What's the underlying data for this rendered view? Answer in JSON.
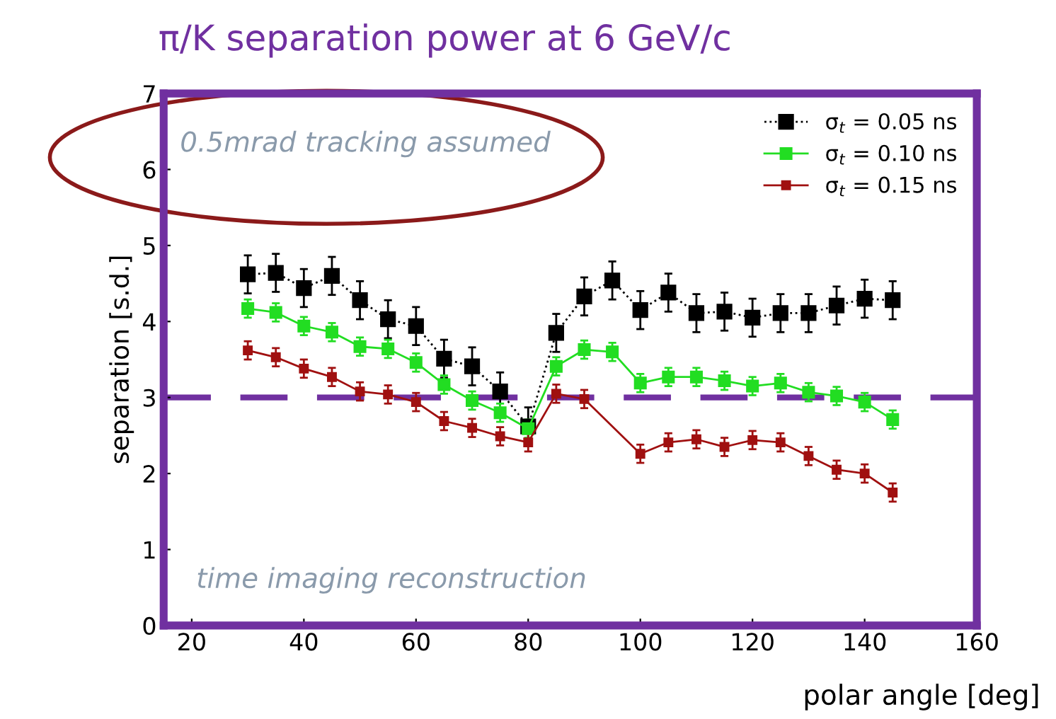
{
  "chart_data": {
    "type": "line",
    "title": "π/K separation power at 6 GeV/c",
    "xlabel": "polar angle [deg]",
    "ylabel": "separation [s.d.]",
    "xlim": [
      15,
      160
    ],
    "xticks": [
      20,
      40,
      60,
      80,
      100,
      120,
      140,
      160
    ],
    "ylim": [
      0,
      7
    ],
    "yticks": [
      0,
      1,
      2,
      3,
      4,
      5,
      6,
      7
    ],
    "grid": false,
    "legend": "top right",
    "marker": "square",
    "ref_lines": [
      {
        "axis": "y",
        "value": 3,
        "label": null,
        "color": "#7030a0",
        "line_style": "dashed"
      }
    ],
    "annotations": [
      "0.5mrad tracking assumed",
      "time imaging reconstruction"
    ],
    "series": [
      {
        "name": "σ$_{t}$ = 0.05 ns",
        "color": "#000000",
        "line_style": "dotted",
        "x": [
          30,
          35,
          40,
          45,
          50,
          55,
          60,
          65,
          70,
          75,
          80,
          85,
          90,
          95,
          100,
          105,
          110,
          115,
          120,
          125,
          130,
          135,
          140,
          145
        ],
        "values": [
          4.62,
          4.64,
          4.44,
          4.6,
          4.28,
          4.03,
          3.94,
          3.51,
          3.41,
          3.08,
          2.62,
          3.85,
          4.33,
          4.54,
          4.15,
          4.38,
          4.11,
          4.13,
          4.05,
          4.11,
          4.11,
          4.21,
          4.3,
          4.28
        ],
        "errors": [
          0.25,
          0.25,
          0.25,
          0.25,
          0.25,
          0.25,
          0.25,
          0.25,
          0.25,
          0.25,
          0.25,
          0.25,
          0.25,
          0.25,
          0.25,
          0.25,
          0.25,
          0.25,
          0.25,
          0.25,
          0.25,
          0.25,
          0.25,
          0.25
        ]
      },
      {
        "name": "σ$_{t}$ = 0.10 ns",
        "color": "#22dd22",
        "line_style": "solid",
        "x": [
          30,
          35,
          40,
          45,
          50,
          55,
          60,
          65,
          70,
          75,
          80,
          85,
          90,
          95,
          100,
          105,
          110,
          115,
          120,
          125,
          130,
          135,
          140,
          145
        ],
        "values": [
          4.17,
          4.12,
          3.94,
          3.86,
          3.67,
          3.64,
          3.46,
          3.17,
          2.96,
          2.8,
          2.59,
          3.41,
          3.63,
          3.6,
          3.19,
          3.27,
          3.27,
          3.22,
          3.15,
          3.19,
          3.07,
          3.02,
          2.94,
          2.71
        ],
        "errors": [
          0.12,
          0.12,
          0.12,
          0.12,
          0.12,
          0.12,
          0.12,
          0.12,
          0.12,
          0.12,
          0.12,
          0.12,
          0.12,
          0.12,
          0.12,
          0.12,
          0.12,
          0.12,
          0.12,
          0.12,
          0.12,
          0.12,
          0.12,
          0.12
        ]
      },
      {
        "name": "σ$_{t}$ = 0.15 ns",
        "color": "#a01010",
        "line_style": "solid",
        "x": [
          30,
          35,
          40,
          45,
          50,
          55,
          60,
          65,
          70,
          75,
          80,
          85,
          90,
          100,
          105,
          110,
          115,
          120,
          125,
          130,
          135,
          140,
          145
        ],
        "values": [
          3.62,
          3.53,
          3.38,
          3.27,
          3.08,
          3.04,
          2.94,
          2.69,
          2.6,
          2.49,
          2.41,
          3.05,
          2.98,
          2.26,
          2.41,
          2.45,
          2.35,
          2.44,
          2.41,
          2.23,
          2.05,
          2.0,
          1.75
        ],
        "errors": [
          0.12,
          0.12,
          0.12,
          0.12,
          0.12,
          0.12,
          0.12,
          0.12,
          0.12,
          0.12,
          0.12,
          0.12,
          0.12,
          0.12,
          0.12,
          0.12,
          0.12,
          0.12,
          0.12,
          0.12,
          0.12,
          0.12,
          0.12
        ]
      }
    ]
  }
}
